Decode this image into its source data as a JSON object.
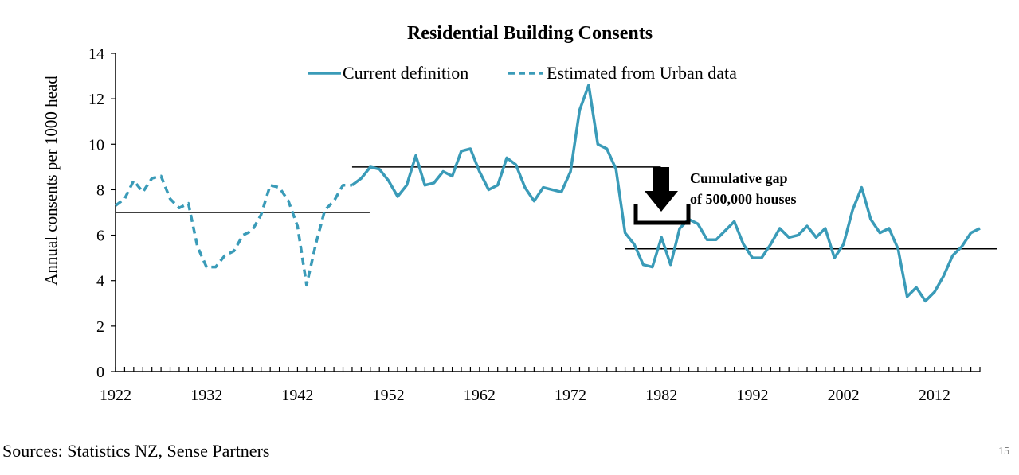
{
  "chart_data": {
    "type": "line",
    "title": "Residential Building Consents",
    "ylabel": "Annual consents per 1000 head",
    "xlabel": "",
    "ylim": [
      0,
      14
    ],
    "xlim": [
      1922,
      2017
    ],
    "yticks": [
      0,
      2,
      4,
      6,
      8,
      10,
      12,
      14
    ],
    "xticks": [
      1922,
      1932,
      1942,
      1952,
      1962,
      1972,
      1982,
      1992,
      2002,
      2012
    ],
    "legend_position": "top",
    "series": [
      {
        "name": "Current definition",
        "style": "solid",
        "color": "#3a9bb8",
        "x": [
          1948,
          1949,
          1950,
          1951,
          1952,
          1953,
          1954,
          1955,
          1956,
          1957,
          1958,
          1959,
          1960,
          1961,
          1962,
          1963,
          1964,
          1965,
          1966,
          1967,
          1968,
          1969,
          1970,
          1971,
          1972,
          1973,
          1974,
          1975,
          1976,
          1977,
          1978,
          1979,
          1980,
          1981,
          1982,
          1983,
          1984,
          1985,
          1986,
          1987,
          1988,
          1989,
          1990,
          1991,
          1992,
          1993,
          1994,
          1995,
          1996,
          1997,
          1998,
          1999,
          2000,
          2001,
          2002,
          2003,
          2004,
          2005,
          2006,
          2007,
          2008,
          2009,
          2010,
          2011,
          2012,
          2013,
          2014,
          2015,
          2016,
          2017
        ],
        "values": [
          8.2,
          8.5,
          9.0,
          8.9,
          8.4,
          7.7,
          8.2,
          9.5,
          8.2,
          8.3,
          8.8,
          8.6,
          9.7,
          9.8,
          8.8,
          8.0,
          8.2,
          9.4,
          9.1,
          8.1,
          7.5,
          8.1,
          8.0,
          7.9,
          8.8,
          11.5,
          12.6,
          10.0,
          9.8,
          8.9,
          6.1,
          5.6,
          4.7,
          4.6,
          5.9,
          4.7,
          6.3,
          6.7,
          6.5,
          5.8,
          5.8,
          6.2,
          6.6,
          5.6,
          5.0,
          5.0,
          5.6,
          6.3,
          5.9,
          6.0,
          6.4,
          5.9,
          6.3,
          5.0,
          5.6,
          7.1,
          8.1,
          6.7,
          6.1,
          6.3,
          5.4,
          3.3,
          3.7,
          3.1,
          3.5,
          4.2,
          5.1,
          5.5,
          6.1,
          6.3
        ]
      },
      {
        "name": "Estimated from Urban data",
        "style": "dashed",
        "color": "#3a9bb8",
        "x": [
          1922,
          1923,
          1924,
          1925,
          1926,
          1927,
          1928,
          1929,
          1930,
          1931,
          1932,
          1933,
          1934,
          1935,
          1936,
          1937,
          1938,
          1939,
          1940,
          1941,
          1942,
          1943,
          1944,
          1945,
          1946,
          1947,
          1948
        ],
        "values": [
          7.3,
          7.6,
          8.4,
          7.9,
          8.5,
          8.6,
          7.6,
          7.2,
          7.4,
          5.5,
          4.6,
          4.6,
          5.1,
          5.3,
          6.0,
          6.2,
          6.9,
          8.2,
          8.1,
          7.5,
          6.4,
          3.8,
          5.6,
          7.1,
          7.5,
          8.2,
          8.2
        ]
      }
    ],
    "reference_lines": [
      {
        "from": 1922,
        "to": 1948,
        "value": 7.0
      },
      {
        "from": 1948,
        "to": 1980,
        "value": 9.0
      },
      {
        "from": 1978,
        "to": 2017,
        "value": 5.4
      }
    ],
    "annotation": {
      "line1": "Cumulative gap",
      "line2": "of 500,000 houses",
      "icon": "down-arrow-icon"
    }
  },
  "footer": {
    "source": "Sources: Statistics NZ, Sense Partners",
    "page_number": "15"
  }
}
